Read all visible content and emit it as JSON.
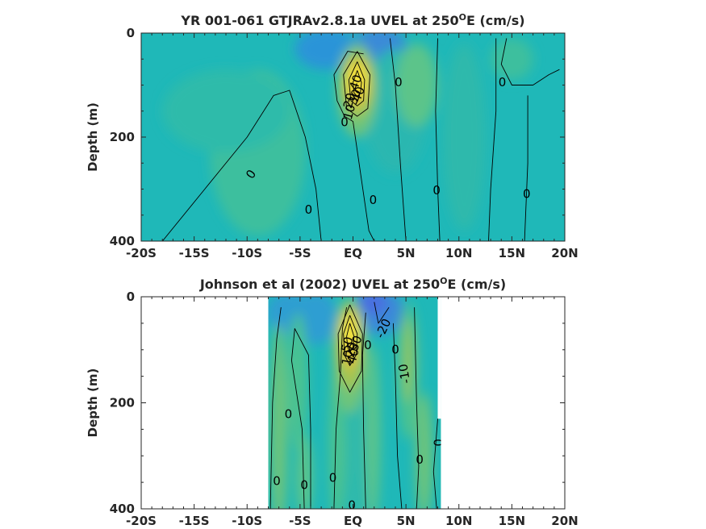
{
  "chart_data": [
    {
      "type": "heatmap",
      "title_main": "YR 001-061 GTJRAv2.8.1a UVEL at 250",
      "title_sup": "O",
      "title_end": "E (cm/s)",
      "xlabel": "",
      "ylabel": "Depth (m)",
      "xlim": [
        -20,
        20
      ],
      "ylim": [
        0,
        400
      ],
      "y_reversed": true,
      "data_xlim": [
        -20,
        20
      ],
      "x_ticks": [
        {
          "value": -20,
          "label": "-20S"
        },
        {
          "value": -15,
          "label": "-15S"
        },
        {
          "value": -10,
          "label": "-10S"
        },
        {
          "value": -5,
          "label": "-5S"
        },
        {
          "value": 0,
          "label": "EQ"
        },
        {
          "value": 5,
          "label": "5N"
        },
        {
          "value": 10,
          "label": "10N"
        },
        {
          "value": 15,
          "label": "15N"
        },
        {
          "value": 20,
          "label": "20N"
        }
      ],
      "y_ticks": [
        {
          "value": 0,
          "label": "0"
        },
        {
          "value": 200,
          "label": "200"
        },
        {
          "value": 400,
          "label": "400"
        }
      ],
      "background_color": "#1fb8b8",
      "blobs": [
        {
          "x": -9,
          "y": 230,
          "rx": 4.5,
          "ry": 160,
          "color": "#3dbf9e"
        },
        {
          "x": -12,
          "y": 150,
          "rx": 6,
          "ry": 80,
          "color": "#2dbbaa"
        },
        {
          "x": -2.5,
          "y": 30,
          "rx": 3,
          "ry": 40,
          "color": "#2a94d8"
        },
        {
          "x": 2.5,
          "y": 25,
          "rx": 2.5,
          "ry": 35,
          "color": "#3a8ad8"
        },
        {
          "x": 4,
          "y": 150,
          "rx": 3,
          "ry": 120,
          "color": "#2ab7b0"
        },
        {
          "x": 6,
          "y": 100,
          "rx": 2,
          "ry": 80,
          "color": "#5cc48a"
        },
        {
          "x": 10.5,
          "y": 200,
          "rx": 2,
          "ry": 180,
          "color": "#2db9ac"
        },
        {
          "x": 15,
          "y": 50,
          "rx": 2,
          "ry": 40,
          "color": "#3dbf9e"
        },
        {
          "x": 0.4,
          "y": 110,
          "rx": 1.9,
          "ry": 90,
          "color": "#6ec47a"
        },
        {
          "x": 0.4,
          "y": 100,
          "rx": 1.5,
          "ry": 62,
          "color": "#a9c44e"
        },
        {
          "x": 0.4,
          "y": 95,
          "rx": 1.1,
          "ry": 45,
          "color": "#e0c13a"
        },
        {
          "x": 0.4,
          "y": 90,
          "rx": 0.7,
          "ry": 30,
          "color": "#f7e83e"
        }
      ],
      "contour_lines": [
        {
          "points": [
            [
              -18,
              400
            ],
            [
              -14,
              300
            ],
            [
              -10,
              200
            ],
            [
              -7.5,
              120
            ],
            [
              -6,
              110
            ],
            [
              -4.5,
              200
            ],
            [
              -3.5,
              300
            ],
            [
              -3,
              400
            ]
          ]
        },
        {
          "points": [
            [
              1,
              40
            ],
            [
              -0.5,
              35
            ],
            [
              -1.8,
              80
            ],
            [
              -1.5,
              130
            ],
            [
              -0.8,
              160
            ],
            [
              0,
              170
            ],
            [
              1.5,
              380
            ],
            [
              2,
              400
            ]
          ]
        },
        {
          "points": [
            [
              3.5,
              10
            ],
            [
              4,
              100
            ],
            [
              4.5,
              260
            ],
            [
              5,
              400
            ]
          ]
        },
        {
          "points": [
            [
              8,
              10
            ],
            [
              7.8,
              150
            ],
            [
              8,
              300
            ],
            [
              8.2,
              400
            ]
          ]
        },
        {
          "points": [
            [
              13.5,
              10
            ],
            [
              13.5,
              150
            ],
            [
              13,
              300
            ],
            [
              12.8,
              400
            ]
          ]
        },
        {
          "points": [
            [
              14.5,
              10
            ],
            [
              14,
              60
            ],
            [
              15,
              100
            ],
            [
              17,
              100
            ],
            [
              18.5,
              80
            ],
            [
              19.5,
              70
            ]
          ]
        },
        {
          "points": [
            [
              16.5,
              120
            ],
            [
              16.5,
              250
            ],
            [
              16.2,
              400
            ]
          ]
        },
        {
          "points": [
            [
              0.4,
              35
            ],
            [
              -0.9,
              80
            ],
            [
              -0.6,
              145
            ],
            [
              0.4,
              160
            ],
            [
              1.4,
              145
            ],
            [
              1.6,
              80
            ],
            [
              0.4,
              35
            ]
          ]
        },
        {
          "points": [
            [
              0.4,
              55
            ],
            [
              -0.4,
              90
            ],
            [
              -0.2,
              130
            ],
            [
              0.4,
              140
            ],
            [
              1.0,
              130
            ],
            [
              1.1,
              90
            ],
            [
              0.4,
              55
            ]
          ]
        },
        {
          "points": [
            [
              0.4,
              72
            ],
            [
              0,
              95
            ],
            [
              0.1,
              115
            ],
            [
              0.4,
              122
            ],
            [
              0.7,
              115
            ],
            [
              0.8,
              95
            ],
            [
              0.4,
              72
            ]
          ]
        }
      ],
      "contour_labels": [
        {
          "text": "0",
          "x": -9.6,
          "y": 272,
          "angle": -55
        },
        {
          "text": "0",
          "x": -4.2,
          "y": 340,
          "angle": 0
        },
        {
          "text": "0",
          "x": -0.8,
          "y": 172,
          "angle": 0
        },
        {
          "text": "0",
          "x": 1.9,
          "y": 322,
          "angle": 0
        },
        {
          "text": "0",
          "x": 4.3,
          "y": 95,
          "angle": 0
        },
        {
          "text": "0",
          "x": 7.9,
          "y": 303,
          "angle": 0
        },
        {
          "text": "0",
          "x": 14.1,
          "y": 95,
          "angle": 0
        },
        {
          "text": "0",
          "x": 16.4,
          "y": 310,
          "angle": 0
        },
        {
          "text": "10",
          "x": -0.3,
          "y": 152,
          "angle": -75
        },
        {
          "text": "20",
          "x": -0.3,
          "y": 130,
          "angle": -75
        },
        {
          "text": "30",
          "x": 0.2,
          "y": 123,
          "angle": -70
        },
        {
          "text": "40",
          "x": 0.55,
          "y": 118,
          "angle": -70
        },
        {
          "text": "40",
          "x": 0.3,
          "y": 95,
          "angle": -70
        }
      ]
    },
    {
      "type": "heatmap",
      "title_main": "Johnson et al (2002) UVEL at 250",
      "title_sup": "O",
      "title_end": "E (cm/s)",
      "xlabel": "",
      "ylabel": "Depth (m)",
      "xlim": [
        -20,
        20
      ],
      "ylim": [
        0,
        400
      ],
      "y_reversed": true,
      "data_xlim": [
        -8,
        8.3
      ],
      "data_cutout": {
        "x": [
          8.0,
          8.3
        ],
        "y": [
          0,
          230
        ]
      },
      "x_ticks": [
        {
          "value": -20,
          "label": "-20S"
        },
        {
          "value": -15,
          "label": "-15S"
        },
        {
          "value": -10,
          "label": "-10S"
        },
        {
          "value": -5,
          "label": "-5S"
        },
        {
          "value": 0,
          "label": "EQ"
        },
        {
          "value": 5,
          "label": "5N"
        },
        {
          "value": 10,
          "label": "10N"
        },
        {
          "value": 15,
          "label": "15N"
        },
        {
          "value": 20,
          "label": "20N"
        }
      ],
      "y_ticks": [
        {
          "value": 0,
          "label": "0"
        },
        {
          "value": 200,
          "label": "200"
        },
        {
          "value": 400,
          "label": "400"
        }
      ],
      "background_color": "#1fb8b8",
      "blobs": [
        {
          "x": -6,
          "y": 30,
          "rx": 2.2,
          "ry": 40,
          "color": "#2f9ed2"
        },
        {
          "x": -3.5,
          "y": 40,
          "rx": 2,
          "ry": 50,
          "color": "#2f9ed2"
        },
        {
          "x": 2.5,
          "y": 30,
          "rx": 2.5,
          "ry": 40,
          "color": "#3a8ad8"
        },
        {
          "x": 1.8,
          "y": 10,
          "rx": 1.5,
          "ry": 25,
          "color": "#4a6fe0"
        },
        {
          "x": -7,
          "y": 250,
          "rx": 0.8,
          "ry": 200,
          "color": "#6ec47a"
        },
        {
          "x": -5.2,
          "y": 160,
          "rx": 0.9,
          "ry": 130,
          "color": "#4cc290"
        },
        {
          "x": -4.6,
          "y": 340,
          "rx": 0.8,
          "ry": 80,
          "color": "#5cc48a"
        },
        {
          "x": -1.5,
          "y": 280,
          "rx": 0.8,
          "ry": 160,
          "color": "#4cc290"
        },
        {
          "x": 0.5,
          "y": 300,
          "rx": 1.2,
          "ry": 150,
          "color": "#2db9ac"
        },
        {
          "x": 1.9,
          "y": 260,
          "rx": 0.7,
          "ry": 170,
          "color": "#5cc48a"
        },
        {
          "x": 5.2,
          "y": 140,
          "rx": 1.0,
          "ry": 130,
          "color": "#4cc290"
        },
        {
          "x": 5.2,
          "y": 120,
          "rx": 0.5,
          "ry": 80,
          "color": "#8fc560"
        },
        {
          "x": 6.7,
          "y": 300,
          "rx": 0.8,
          "ry": 120,
          "color": "#6ec47a"
        },
        {
          "x": -0.3,
          "y": 110,
          "rx": 1.6,
          "ry": 110,
          "color": "#6ec47a"
        },
        {
          "x": -0.3,
          "y": 95,
          "rx": 1.2,
          "ry": 80,
          "color": "#a9c44e"
        },
        {
          "x": -0.3,
          "y": 80,
          "rx": 0.9,
          "ry": 55,
          "color": "#e0c13a"
        },
        {
          "x": -0.3,
          "y": 70,
          "rx": 0.6,
          "ry": 35,
          "color": "#f7e83e"
        }
      ],
      "contour_lines": [
        {
          "points": [
            [
              -7.8,
              400
            ],
            [
              -7.6,
              200
            ],
            [
              -7.2,
              80
            ],
            [
              -6.8,
              20
            ]
          ]
        },
        {
          "points": [
            [
              -4.6,
              400
            ],
            [
              -4.8,
              250
            ],
            [
              -5.8,
              120
            ],
            [
              -5.5,
              60
            ],
            [
              -4.2,
              110
            ],
            [
              -4.0,
              250
            ],
            [
              -4.0,
              400
            ]
          ]
        },
        {
          "points": [
            [
              -1.8,
              400
            ],
            [
              -1.6,
              250
            ],
            [
              -1.2,
              150
            ],
            [
              -1.0,
              60
            ],
            [
              -0.6,
              20
            ]
          ]
        },
        {
          "points": [
            [
              1.2,
              30
            ],
            [
              0.9,
              110
            ],
            [
              1.0,
              250
            ],
            [
              1.2,
              400
            ]
          ]
        },
        {
          "points": [
            [
              3.8,
              50
            ],
            [
              4.0,
              150
            ],
            [
              4.2,
              300
            ],
            [
              4.6,
              400
            ]
          ]
        },
        {
          "points": [
            [
              5.8,
              20
            ],
            [
              6.0,
              200
            ],
            [
              6.2,
              320
            ],
            [
              6.0,
              400
            ]
          ]
        },
        {
          "points": [
            [
              8.0,
              230
            ],
            [
              7.6,
              330
            ],
            [
              7.9,
              400
            ]
          ]
        },
        {
          "points": [
            [
              2.0,
              10
            ],
            [
              2.4,
              50
            ],
            [
              3.4,
              20
            ]
          ]
        },
        {
          "points": [
            [
              -0.3,
              15
            ],
            [
              -1.4,
              70
            ],
            [
              -1.3,
              140
            ],
            [
              -0.3,
              180
            ],
            [
              0.8,
              140
            ],
            [
              0.9,
              70
            ],
            [
              -0.3,
              15
            ]
          ]
        },
        {
          "points": [
            [
              -0.3,
              35
            ],
            [
              -0.9,
              70
            ],
            [
              -0.8,
              110
            ],
            [
              -0.3,
              130
            ],
            [
              0.3,
              110
            ],
            [
              0.4,
              70
            ],
            [
              -0.3,
              35
            ]
          ]
        },
        {
          "points": [
            [
              -0.3,
              50
            ],
            [
              -0.6,
              75
            ],
            [
              -0.5,
              95
            ],
            [
              -0.3,
              105
            ],
            [
              0,
              95
            ],
            [
              0.1,
              75
            ],
            [
              -0.3,
              50
            ]
          ]
        }
      ],
      "contour_labels": [
        {
          "text": "0",
          "x": -6.1,
          "y": 222,
          "angle": 0
        },
        {
          "text": "0",
          "x": -7.2,
          "y": 348,
          "angle": 0
        },
        {
          "text": "0",
          "x": -4.6,
          "y": 356,
          "angle": 0
        },
        {
          "text": "0",
          "x": -1.9,
          "y": 342,
          "angle": 0
        },
        {
          "text": "0",
          "x": -0.1,
          "y": 394,
          "angle": 0
        },
        {
          "text": "0",
          "x": 1.4,
          "y": 92,
          "angle": 0
        },
        {
          "text": "0",
          "x": 4.0,
          "y": 100,
          "angle": 0
        },
        {
          "text": "0",
          "x": 6.3,
          "y": 308,
          "angle": 0
        },
        {
          "text": "0",
          "x": 8.1,
          "y": 275,
          "angle": -90
        },
        {
          "text": "-20",
          "x": 2.9,
          "y": 60,
          "angle": -65
        },
        {
          "text": "-10",
          "x": 4.9,
          "y": 145,
          "angle": -100
        },
        {
          "text": "10",
          "x": -0.5,
          "y": 115,
          "angle": -80
        },
        {
          "text": "20",
          "x": -0.1,
          "y": 100,
          "angle": -75
        },
        {
          "text": "30",
          "x": 0.3,
          "y": 88,
          "angle": -70
        },
        {
          "text": "50",
          "x": -0.5,
          "y": 90,
          "angle": -75
        },
        {
          "text": "40",
          "x": 0.05,
          "y": 112,
          "angle": -75
        }
      ]
    }
  ]
}
